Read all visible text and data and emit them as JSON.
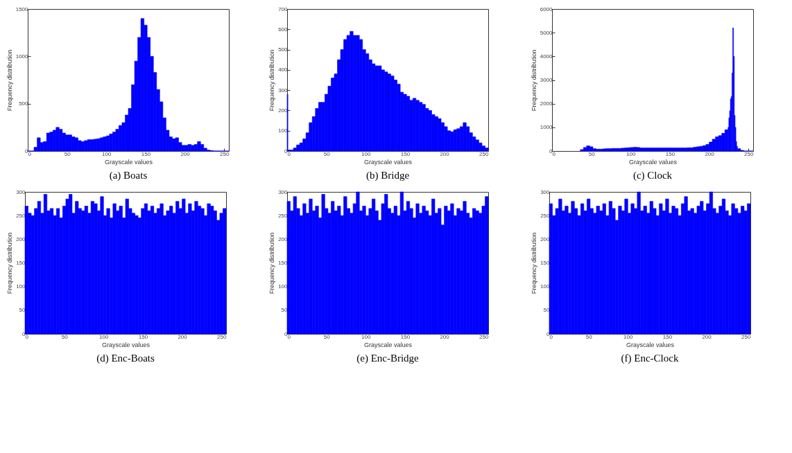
{
  "chart_data": [
    {
      "type": "histogram",
      "title": "(a) Boats",
      "xlabel": "Grayscale values",
      "ylabel": "Frequency distribution",
      "color": "#0000ff",
      "xlim": [
        0,
        256
      ],
      "xticks": [
        0,
        50,
        100,
        150,
        200,
        250
      ],
      "ylim": [
        0,
        1500
      ],
      "yticks": [
        0,
        500,
        1000,
        1500
      ],
      "grid": false,
      "bins": [
        0,
        4,
        8,
        12,
        16,
        20,
        24,
        28,
        32,
        36,
        40,
        44,
        48,
        52,
        56,
        60,
        64,
        68,
        72,
        76,
        80,
        84,
        88,
        92,
        96,
        100,
        104,
        108,
        112,
        116,
        120,
        124,
        128,
        132,
        136,
        140,
        144,
        148,
        152,
        156,
        160,
        164,
        168,
        172,
        176,
        180,
        184,
        188,
        192,
        196,
        200,
        204,
        208,
        212,
        216,
        220,
        224,
        228,
        232,
        236,
        240,
        244,
        248,
        252,
        256
      ],
      "values": [
        0,
        0,
        40,
        140,
        90,
        100,
        190,
        200,
        220,
        250,
        230,
        190,
        170,
        170,
        150,
        140,
        110,
        100,
        110,
        120,
        120,
        125,
        130,
        140,
        150,
        160,
        180,
        200,
        230,
        270,
        300,
        380,
        450,
        700,
        950,
        1200,
        1400,
        1330,
        1200,
        1000,
        830,
        650,
        520,
        350,
        220,
        150,
        130,
        140,
        90,
        60,
        60,
        70,
        60,
        70,
        100,
        70,
        30,
        10,
        5,
        0,
        0,
        0,
        0,
        0
      ]
    },
    {
      "type": "histogram",
      "title": "(b) Bridge",
      "xlabel": "Grayscale values",
      "ylabel": "Frequency distribution",
      "color": "#0000ff",
      "xlim": [
        0,
        256
      ],
      "xticks": [
        0,
        50,
        100,
        150,
        200,
        250
      ],
      "ylim": [
        0,
        700
      ],
      "yticks": [
        0,
        100,
        200,
        300,
        400,
        500,
        600,
        700
      ],
      "grid": false,
      "bins": [
        0,
        1,
        4,
        8,
        12,
        16,
        20,
        24,
        28,
        32,
        36,
        40,
        44,
        48,
        52,
        56,
        60,
        64,
        68,
        72,
        76,
        80,
        84,
        88,
        92,
        96,
        100,
        104,
        108,
        112,
        116,
        120,
        124,
        128,
        132,
        136,
        140,
        144,
        148,
        152,
        156,
        160,
        164,
        168,
        172,
        176,
        180,
        184,
        188,
        192,
        196,
        200,
        204,
        208,
        212,
        216,
        220,
        224,
        228,
        232,
        236,
        240,
        244,
        248,
        252,
        256
      ],
      "values": [
        280,
        5,
        5,
        15,
        30,
        40,
        60,
        90,
        140,
        170,
        210,
        240,
        240,
        280,
        320,
        360,
        380,
        450,
        500,
        550,
        570,
        590,
        570,
        570,
        550,
        500,
        480,
        450,
        430,
        420,
        420,
        400,
        390,
        380,
        370,
        350,
        330,
        290,
        280,
        270,
        250,
        260,
        250,
        240,
        230,
        210,
        200,
        180,
        170,
        160,
        140,
        120,
        100,
        95,
        105,
        110,
        120,
        140,
        120,
        90,
        70,
        55,
        40,
        25,
        15
      ]
    },
    {
      "type": "histogram",
      "title": "(c) Clock",
      "xlabel": "Grayscale values",
      "ylabel": "Frequency distribution",
      "color": "#0000ff",
      "xlim": [
        0,
        256
      ],
      "xticks": [
        0,
        50,
        100,
        150,
        200,
        250
      ],
      "ylim": [
        0,
        6000
      ],
      "yticks": [
        0,
        1000,
        2000,
        3000,
        4000,
        5000,
        6000
      ],
      "grid": false,
      "bins": [
        36,
        40,
        44,
        48,
        52,
        56,
        60,
        64,
        68,
        72,
        76,
        80,
        84,
        88,
        92,
        96,
        100,
        104,
        108,
        112,
        116,
        120,
        124,
        128,
        132,
        136,
        140,
        144,
        148,
        152,
        156,
        160,
        164,
        168,
        172,
        176,
        180,
        184,
        188,
        192,
        196,
        200,
        204,
        208,
        212,
        216,
        220,
        224,
        225,
        226,
        227,
        228,
        229,
        230,
        231,
        232,
        233,
        234,
        235,
        236,
        240,
        244,
        248,
        252,
        256
      ],
      "values": [
        60,
        150,
        220,
        180,
        100,
        80,
        80,
        90,
        100,
        100,
        110,
        110,
        110,
        120,
        130,
        140,
        150,
        160,
        150,
        130,
        130,
        130,
        130,
        130,
        130,
        130,
        130,
        130,
        130,
        130,
        130,
        130,
        130,
        130,
        140,
        140,
        160,
        180,
        200,
        230,
        280,
        380,
        500,
        600,
        650,
        750,
        900,
        1000,
        1400,
        1700,
        2200,
        2300,
        3300,
        5200,
        4000,
        1500,
        1000,
        400,
        200,
        100,
        30,
        0,
        0,
        0
      ]
    },
    {
      "type": "histogram",
      "title": "(d) Enc-Boats",
      "xlabel": "Grayscale values",
      "ylabel": "Frequency distribution",
      "color": "#0000ff",
      "xlim": [
        0,
        256
      ],
      "xticks": [
        0,
        50,
        100,
        150,
        200,
        250
      ],
      "ylim": [
        0,
        300
      ],
      "yticks": [
        0,
        50,
        100,
        150,
        200,
        250,
        300
      ],
      "grid": false,
      "bins": [
        0,
        4,
        8,
        12,
        16,
        20,
        24,
        28,
        32,
        36,
        40,
        44,
        48,
        52,
        56,
        60,
        64,
        68,
        72,
        76,
        80,
        84,
        88,
        92,
        96,
        100,
        104,
        108,
        112,
        116,
        120,
        124,
        128,
        132,
        136,
        140,
        144,
        148,
        152,
        156,
        160,
        164,
        168,
        172,
        176,
        180,
        184,
        188,
        192,
        196,
        200,
        204,
        208,
        212,
        216,
        220,
        224,
        228,
        232,
        236,
        240,
        244,
        248,
        252,
        256
      ],
      "values": [
        270,
        255,
        250,
        265,
        280,
        255,
        295,
        260,
        265,
        250,
        265,
        245,
        270,
        285,
        295,
        255,
        280,
        265,
        260,
        270,
        255,
        280,
        275,
        260,
        290,
        250,
        265,
        245,
        275,
        260,
        270,
        245,
        285,
        265,
        255,
        250,
        245,
        265,
        275,
        260,
        270,
        255,
        265,
        275,
        250,
        260,
        270,
        255,
        280,
        265,
        285,
        255,
        275,
        260,
        280,
        270,
        265,
        250,
        275,
        270,
        260,
        240,
        255,
        265
      ]
    },
    {
      "type": "histogram",
      "title": "(e) Enc-Bridge",
      "xlabel": "Grayscale values",
      "ylabel": "Frequency distribution",
      "color": "#0000ff",
      "xlim": [
        0,
        256
      ],
      "xticks": [
        0,
        50,
        100,
        150,
        200,
        250
      ],
      "ylim": [
        0,
        300
      ],
      "yticks": [
        0,
        50,
        100,
        150,
        200,
        250,
        300
      ],
      "grid": false,
      "bins": [
        0,
        4,
        8,
        12,
        16,
        20,
        24,
        28,
        32,
        36,
        40,
        44,
        48,
        52,
        56,
        60,
        64,
        68,
        72,
        76,
        80,
        84,
        88,
        92,
        96,
        100,
        104,
        108,
        112,
        116,
        120,
        124,
        128,
        132,
        136,
        140,
        144,
        148,
        152,
        156,
        160,
        164,
        168,
        172,
        176,
        180,
        184,
        188,
        192,
        196,
        200,
        204,
        208,
        212,
        216,
        220,
        224,
        228,
        232,
        236,
        240,
        244,
        248,
        252,
        256
      ],
      "values": [
        280,
        260,
        290,
        265,
        250,
        275,
        255,
        285,
        260,
        270,
        245,
        295,
        265,
        255,
        280,
        260,
        270,
        250,
        290,
        265,
        255,
        275,
        300,
        260,
        270,
        250,
        265,
        285,
        260,
        240,
        275,
        295,
        265,
        255,
        270,
        250,
        300,
        260,
        280,
        265,
        245,
        275,
        255,
        270,
        260,
        250,
        285,
        255,
        265,
        230,
        270,
        260,
        275,
        250,
        265,
        260,
        280,
        255,
        245,
        265,
        260,
        255,
        270,
        290
      ]
    },
    {
      "type": "histogram",
      "title": "(f) Enc-Clock",
      "xlabel": "Grayscale values",
      "ylabel": "Frequency distribution",
      "color": "#0000ff",
      "xlim": [
        0,
        256
      ],
      "xticks": [
        0,
        50,
        100,
        150,
        200,
        250
      ],
      "ylim": [
        0,
        300
      ],
      "yticks": [
        0,
        50,
        100,
        150,
        200,
        250,
        300
      ],
      "grid": false,
      "bins": [
        0,
        4,
        8,
        12,
        16,
        20,
        24,
        28,
        32,
        36,
        40,
        44,
        48,
        52,
        56,
        60,
        64,
        68,
        72,
        76,
        80,
        84,
        88,
        92,
        96,
        100,
        104,
        108,
        112,
        116,
        120,
        124,
        128,
        132,
        136,
        140,
        144,
        148,
        152,
        156,
        160,
        164,
        168,
        172,
        176,
        180,
        184,
        188,
        192,
        196,
        200,
        204,
        208,
        212,
        216,
        220,
        224,
        228,
        232,
        236,
        240,
        244,
        248,
        252,
        256
      ],
      "values": [
        275,
        250,
        265,
        285,
        260,
        270,
        255,
        280,
        265,
        250,
        275,
        260,
        285,
        265,
        255,
        270,
        260,
        275,
        250,
        280,
        265,
        240,
        270,
        260,
        285,
        255,
        275,
        265,
        300,
        260,
        270,
        255,
        280,
        265,
        250,
        275,
        260,
        285,
        255,
        270,
        265,
        250,
        275,
        290,
        260,
        265,
        255,
        270,
        280,
        260,
        275,
        300,
        265,
        255,
        270,
        285,
        260,
        250,
        275,
        265,
        255,
        270,
        260,
        275
      ]
    }
  ]
}
